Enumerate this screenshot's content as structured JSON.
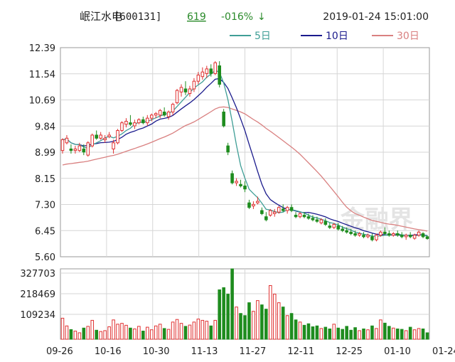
{
  "header": {
    "stock_name": "岷江水电",
    "stock_code": "[600131]",
    "price": "619",
    "change": "-016%",
    "arrow": "↓",
    "datetime": "2019-01-24  15:01:00"
  },
  "legend": [
    {
      "label": "5日",
      "color": "#3f9e96"
    },
    {
      "label": "10日",
      "color": "#1a1a8c"
    },
    {
      "label": "30日",
      "color": "#d98080"
    }
  ],
  "colors": {
    "up": "#e03030",
    "down": "#1e8c1e",
    "grid": "#d6d6d6",
    "frame": "#999999",
    "price_up": "#2a8a2a"
  },
  "chart_data": {
    "type": "candlestick",
    "price_ticks": [
      "12.39",
      "11.54",
      "10.69",
      "9.84",
      "8.99",
      "8.15",
      "7.30",
      "6.45",
      "5.60"
    ],
    "price_range": [
      5.6,
      12.39
    ],
    "volume_ticks": [
      "327703",
      "218469",
      "109234"
    ],
    "volume_range": [
      0,
      327703
    ],
    "date_labels": [
      "09-26",
      "10-16",
      "10-30",
      "11-13",
      "11-27",
      "12-11",
      "12-25",
      "01-10",
      "01-24"
    ],
    "ohlc": [
      [
        9.05,
        9.45,
        8.95,
        9.4
      ],
      [
        9.3,
        9.55,
        9.25,
        9.45
      ],
      [
        9.1,
        9.25,
        8.95,
        9.05
      ],
      [
        9.05,
        9.2,
        8.95,
        9.1
      ],
      [
        9.05,
        9.3,
        9.0,
        9.2
      ],
      [
        9.1,
        9.25,
        8.9,
        9.0
      ],
      [
        8.9,
        9.35,
        8.85,
        9.3
      ],
      [
        9.2,
        9.6,
        9.15,
        9.55
      ],
      [
        9.55,
        9.7,
        9.4,
        9.45
      ],
      [
        9.45,
        9.65,
        9.4,
        9.55
      ],
      [
        9.4,
        9.55,
        9.3,
        9.45
      ],
      [
        9.5,
        9.65,
        9.45,
        9.55
      ],
      [
        9.1,
        9.4,
        8.95,
        9.3
      ],
      [
        9.3,
        9.75,
        9.25,
        9.7
      ],
      [
        9.7,
        10.0,
        9.65,
        9.95
      ],
      [
        9.9,
        10.1,
        9.8,
        10.0
      ],
      [
        9.95,
        10.2,
        9.85,
        9.9
      ],
      [
        9.85,
        10.05,
        9.75,
        9.95
      ],
      [
        9.95,
        10.1,
        9.9,
        10.05
      ],
      [
        10.05,
        10.15,
        9.9,
        9.95
      ],
      [
        9.95,
        10.2,
        9.85,
        10.1
      ],
      [
        10.1,
        10.25,
        10.0,
        10.2
      ],
      [
        10.2,
        10.3,
        10.1,
        10.25
      ],
      [
        10.2,
        10.4,
        10.1,
        10.35
      ],
      [
        10.3,
        10.45,
        10.15,
        10.2
      ],
      [
        10.15,
        10.35,
        10.05,
        10.3
      ],
      [
        10.3,
        10.6,
        10.2,
        10.55
      ],
      [
        10.6,
        11.05,
        10.55,
        11.0
      ],
      [
        10.95,
        11.2,
        10.8,
        11.1
      ],
      [
        11.05,
        11.3,
        10.85,
        10.95
      ],
      [
        10.9,
        11.15,
        10.8,
        11.05
      ],
      [
        11.05,
        11.4,
        10.95,
        11.3
      ],
      [
        11.3,
        11.6,
        11.2,
        11.5
      ],
      [
        11.45,
        11.75,
        11.35,
        11.6
      ],
      [
        11.55,
        11.8,
        11.4,
        11.7
      ],
      [
        11.7,
        11.85,
        11.45,
        11.55
      ],
      [
        11.55,
        11.95,
        11.5,
        11.9
      ],
      [
        11.8,
        11.95,
        11.1,
        11.2
      ],
      [
        10.3,
        10.4,
        9.8,
        9.85
      ],
      [
        9.2,
        9.3,
        8.9,
        9.0
      ],
      [
        8.3,
        8.4,
        7.95,
        8.0
      ],
      [
        8.0,
        8.15,
        7.9,
        8.05
      ],
      [
        7.95,
        8.1,
        7.85,
        7.9
      ],
      [
        7.9,
        8.05,
        7.7,
        7.8
      ],
      [
        7.35,
        7.45,
        7.15,
        7.2
      ],
      [
        7.25,
        7.4,
        7.15,
        7.3
      ],
      [
        7.35,
        7.55,
        7.3,
        7.4
      ],
      [
        7.1,
        7.2,
        6.95,
        7.0
      ],
      [
        6.9,
        7.05,
        6.75,
        6.8
      ],
      [
        6.95,
        7.15,
        6.9,
        7.1
      ],
      [
        7.0,
        7.15,
        6.9,
        7.05
      ],
      [
        7.05,
        7.25,
        7.0,
        7.2
      ],
      [
        7.15,
        7.3,
        7.05,
        7.1
      ],
      [
        7.1,
        7.25,
        7.0,
        7.2
      ],
      [
        7.2,
        7.3,
        7.05,
        7.1
      ],
      [
        6.95,
        7.05,
        6.85,
        6.9
      ],
      [
        6.9,
        7.05,
        6.85,
        7.0
      ],
      [
        6.95,
        7.05,
        6.85,
        6.9
      ],
      [
        6.9,
        7.0,
        6.8,
        6.85
      ],
      [
        6.85,
        6.95,
        6.75,
        6.8
      ],
      [
        6.8,
        6.9,
        6.7,
        6.75
      ],
      [
        6.7,
        6.85,
        6.65,
        6.8
      ],
      [
        6.75,
        6.85,
        6.6,
        6.65
      ],
      [
        6.6,
        6.7,
        6.5,
        6.55
      ],
      [
        6.55,
        6.7,
        6.5,
        6.65
      ],
      [
        6.6,
        6.7,
        6.45,
        6.5
      ],
      [
        6.5,
        6.6,
        6.4,
        6.45
      ],
      [
        6.45,
        6.55,
        6.35,
        6.4
      ],
      [
        6.4,
        6.5,
        6.3,
        6.35
      ],
      [
        6.35,
        6.45,
        6.25,
        6.3
      ],
      [
        6.3,
        6.4,
        6.25,
        6.35
      ],
      [
        6.3,
        6.4,
        6.2,
        6.25
      ],
      [
        6.25,
        6.35,
        6.2,
        6.3
      ],
      [
        6.25,
        6.35,
        6.1,
        6.15
      ],
      [
        6.15,
        6.35,
        6.1,
        6.3
      ],
      [
        6.3,
        6.45,
        6.25,
        6.4
      ],
      [
        6.4,
        6.55,
        6.3,
        6.35
      ],
      [
        6.35,
        6.45,
        6.25,
        6.3
      ],
      [
        6.3,
        6.4,
        6.25,
        6.35
      ],
      [
        6.35,
        6.45,
        6.25,
        6.3
      ],
      [
        6.3,
        6.4,
        6.2,
        6.25
      ],
      [
        6.25,
        6.35,
        6.15,
        6.3
      ],
      [
        6.3,
        6.4,
        6.2,
        6.25
      ],
      [
        6.2,
        6.35,
        6.15,
        6.3
      ],
      [
        6.3,
        6.45,
        6.25,
        6.4
      ],
      [
        6.35,
        6.4,
        6.2,
        6.25
      ],
      [
        6.25,
        6.3,
        6.15,
        6.19
      ]
    ],
    "volume": [
      98000,
      62000,
      45000,
      38000,
      30000,
      52000,
      60000,
      88000,
      42000,
      36000,
      40000,
      58000,
      90000,
      70000,
      74000,
      65000,
      52000,
      48000,
      60000,
      38000,
      56000,
      44000,
      62000,
      70000,
      50000,
      46000,
      80000,
      92000,
      74000,
      60000,
      66000,
      80000,
      94000,
      88000,
      84000,
      62000,
      88000,
      230000,
      240000,
      210000,
      327703,
      150000,
      120000,
      110000,
      170000,
      130000,
      180000,
      160000,
      140000,
      250000,
      210000,
      170000,
      150000,
      110000,
      120000,
      90000,
      80000,
      65000,
      72000,
      58000,
      62000,
      50000,
      56000,
      48000,
      70000,
      52000,
      46000,
      60000,
      42000,
      54000,
      40000,
      48000,
      44000,
      62000,
      50000,
      90000,
      75000,
      60000,
      52000,
      48000,
      46000,
      40000,
      56000,
      44000,
      50000,
      48000,
      30000
    ]
  }
}
